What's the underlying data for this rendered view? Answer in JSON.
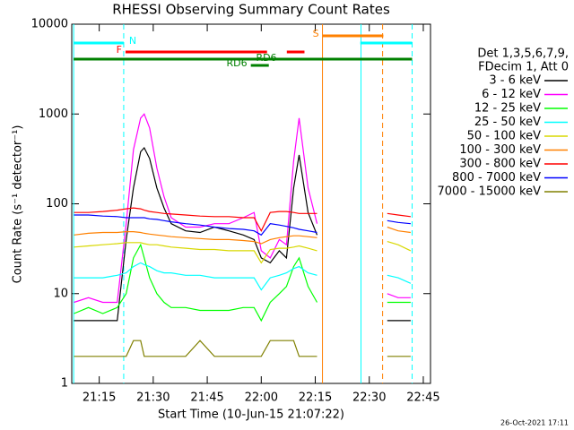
{
  "chart_data": {
    "type": "line",
    "title": "RHESSI Observing Summary Count Rates",
    "x_label": "Start Time (10-Jun-15 21:07:22)",
    "y_label": "Count Rate (s⁻¹ detector⁻¹)",
    "legend_header": [
      "Det 1,3,5,6,7,9,",
      "FDecim 1, Att 0"
    ],
    "footer": "26-Oct-2021 17:11",
    "log_y": true,
    "xlim": [
      7.37,
      107
    ],
    "ylim": [
      1,
      10000
    ],
    "xticks": [
      {
        "value": 15,
        "label": "21:15"
      },
      {
        "value": 30,
        "label": "21:30"
      },
      {
        "value": 45,
        "label": "21:45"
      },
      {
        "value": 60,
        "label": "22:00"
      },
      {
        "value": 75,
        "label": "22:15"
      },
      {
        "value": 90,
        "label": "22:30"
      },
      {
        "value": 105,
        "label": "22:45"
      }
    ],
    "yticks": [
      1,
      10,
      100,
      1000,
      10000
    ],
    "x": [
      8,
      12,
      16,
      20,
      22.5,
      24.5,
      26.5,
      27.5,
      29,
      31,
      33,
      35,
      39,
      43,
      47,
      51,
      55,
      58,
      60,
      62.5,
      65,
      67,
      69,
      70.5,
      73,
      75.5,
      85,
      95,
      98,
      101.5
    ],
    "series": [
      {
        "name": "3 - 6 keV",
        "color": "#000000",
        "values": [
          5,
          5,
          5,
          5,
          40,
          150,
          380,
          420,
          320,
          150,
          90,
          60,
          50,
          48,
          55,
          50,
          45,
          40,
          25,
          22,
          30,
          25,
          150,
          350,
          80,
          45,
          null,
          5,
          5,
          5
        ]
      },
      {
        "name": "6 - 12 keV",
        "color": "#ff00ff",
        "values": [
          8,
          9,
          8,
          8,
          60,
          400,
          900,
          1000,
          700,
          250,
          120,
          70,
          55,
          55,
          60,
          60,
          70,
          80,
          30,
          25,
          40,
          35,
          300,
          900,
          150,
          60,
          null,
          10,
          9,
          9
        ]
      },
      {
        "name": "12 - 25 keV",
        "color": "#00ff00",
        "values": [
          6,
          7,
          6,
          7,
          10,
          25,
          35,
          25,
          15,
          10,
          8,
          7,
          7,
          6.5,
          6.5,
          6.5,
          7,
          7,
          5,
          8,
          10,
          12,
          20,
          25,
          12,
          8,
          null,
          8,
          8,
          8
        ]
      },
      {
        "name": "25 - 50 keV",
        "color": "#00ffff",
        "values": [
          15,
          15,
          15,
          16,
          17,
          20,
          22,
          21,
          20,
          18,
          17,
          17,
          16,
          16,
          15,
          15,
          15,
          15,
          11,
          15,
          16,
          17,
          19,
          20,
          17,
          16,
          null,
          16,
          15,
          13
        ]
      },
      {
        "name": "50 - 100 keV",
        "color": "#d8d800",
        "values": [
          33,
          34,
          35,
          36,
          37,
          37,
          37,
          36,
          35,
          35,
          34,
          33,
          32,
          31,
          31,
          30,
          30,
          30,
          22,
          31,
          32,
          32,
          33,
          34,
          32,
          30,
          null,
          38,
          35,
          30
        ]
      },
      {
        "name": "100 - 300 keV",
        "color": "#ff8000",
        "values": [
          45,
          47,
          48,
          48,
          49,
          49,
          48,
          47,
          46,
          45,
          44,
          43,
          42,
          41,
          40,
          40,
          39,
          38,
          36,
          40,
          42,
          43,
          44,
          44,
          43,
          42,
          null,
          55,
          50,
          48
        ]
      },
      {
        "name": "300 - 800 keV",
        "color": "#ff0000",
        "values": [
          80,
          80,
          82,
          85,
          88,
          90,
          88,
          85,
          82,
          80,
          78,
          77,
          75,
          73,
          72,
          72,
          70,
          70,
          50,
          80,
          82,
          82,
          80,
          78,
          78,
          78,
          null,
          78,
          75,
          72
        ]
      },
      {
        "name": "800 - 7000 keV",
        "color": "#0000ff",
        "values": [
          75,
          75,
          73,
          72,
          70,
          70,
          70,
          70,
          68,
          67,
          65,
          63,
          60,
          58,
          55,
          53,
          52,
          50,
          45,
          60,
          58,
          56,
          54,
          52,
          50,
          48,
          null,
          65,
          62,
          60
        ]
      },
      {
        "name": "7000 - 15000 keV",
        "color": "#808000",
        "values": [
          2,
          2,
          2,
          2,
          2,
          3,
          3,
          2,
          2,
          2,
          2,
          2,
          2,
          3,
          2,
          2,
          2,
          2,
          2,
          3,
          3,
          3,
          3,
          2,
          2,
          2,
          null,
          2,
          2,
          2
        ]
      }
    ],
    "flags": [
      {
        "label": "S",
        "color": "#ff8000",
        "segments": [
          [
            77,
            93.9
          ]
        ]
      },
      {
        "label": "N",
        "color": "#00ffff",
        "segments": [
          [
            7.9,
            21.8
          ],
          [
            87.5,
            101.9
          ]
        ]
      },
      {
        "label": "F",
        "color": "#ff0000",
        "segments": [
          [
            22.3,
            61.6
          ],
          [
            67.1,
            72
          ]
        ]
      },
      {
        "label": "RD6",
        "color": "#008000",
        "segments": [
          [
            7.9,
            101.9
          ]
        ]
      },
      {
        "label": "RD6",
        "color": "#008000",
        "segments": [
          [
            57.1,
            62.1
          ]
        ]
      }
    ],
    "markers": [
      {
        "x": 7.9,
        "color": "#00ffff",
        "dashed": false
      },
      {
        "x": 21.8,
        "color": "#00ffff",
        "dashed": true
      },
      {
        "x": 77,
        "color": "#ff8000",
        "dashed": false
      },
      {
        "x": 87.7,
        "color": "#00ffff",
        "dashed": false
      },
      {
        "x": 93.7,
        "color": "#ff8000",
        "dashed": true
      },
      {
        "x": 101.9,
        "color": "#00ffff",
        "dashed": true
      }
    ]
  }
}
